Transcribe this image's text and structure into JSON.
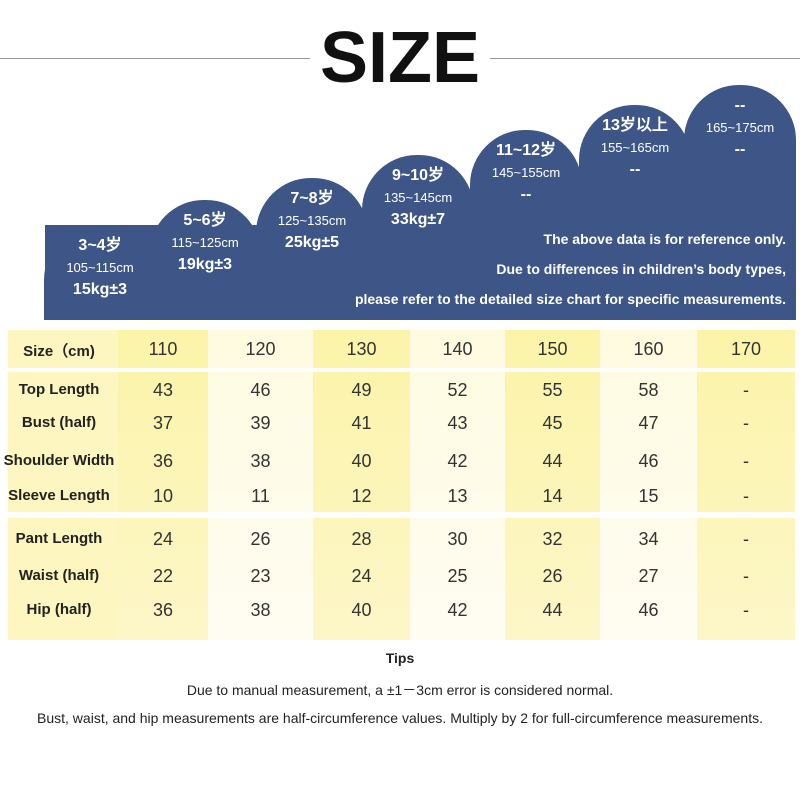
{
  "header": {
    "title": "SIZE"
  },
  "badges": [
    {
      "age": "3~4岁",
      "height": "105~115cm",
      "weight": "15kg±3"
    },
    {
      "age": "5~6岁",
      "height": "115~125cm",
      "weight": "19kg±3"
    },
    {
      "age": "7~8岁",
      "height": "125~135cm",
      "weight": "25kg±5"
    },
    {
      "age": "9~10岁",
      "height": "135~145cm",
      "weight": "33kg±7"
    },
    {
      "age": "11~12岁",
      "height": "145~155cm",
      "weight": "--"
    },
    {
      "age": "13岁以上",
      "height": "155~165cm",
      "weight": "--"
    },
    {
      "age": "--",
      "height": "165~175cm",
      "weight": "--"
    }
  ],
  "notes": [
    "The above data is for reference only.",
    "Due to differences in children’s body types,",
    "please refer to the detailed size chart for specific measurements."
  ],
  "table": {
    "header": [
      "Size（cm)",
      "110",
      "120",
      "130",
      "140",
      "150",
      "160",
      "170"
    ],
    "rows": [
      [
        "Top Length",
        "43",
        "46",
        "49",
        "52",
        "55",
        "58",
        "-"
      ],
      [
        "Bust (half)",
        "37",
        "39",
        "41",
        "43",
        "45",
        "47",
        "-"
      ],
      [
        "Shoulder Width",
        "36",
        "38",
        "40",
        "42",
        "44",
        "46",
        "-"
      ],
      [
        "Sleeve Length",
        "10",
        "11",
        "12",
        "13",
        "14",
        "15",
        "-"
      ],
      [
        "Pant Length",
        "24",
        "26",
        "28",
        "30",
        "32",
        "34",
        "-"
      ],
      [
        "Waist (half)",
        "22",
        "23",
        "24",
        "25",
        "26",
        "27",
        "-"
      ],
      [
        "Hip (half)",
        "36",
        "38",
        "40",
        "42",
        "44",
        "46",
        "-"
      ]
    ]
  },
  "tips": {
    "title": "Tips",
    "lines": [
      "Due to manual measurement, a ±1－3cm error is considered normal.",
      "Bust, waist, and hip measurements are half-circumference values. Multiply by 2 for full-circumference measurements."
    ]
  }
}
